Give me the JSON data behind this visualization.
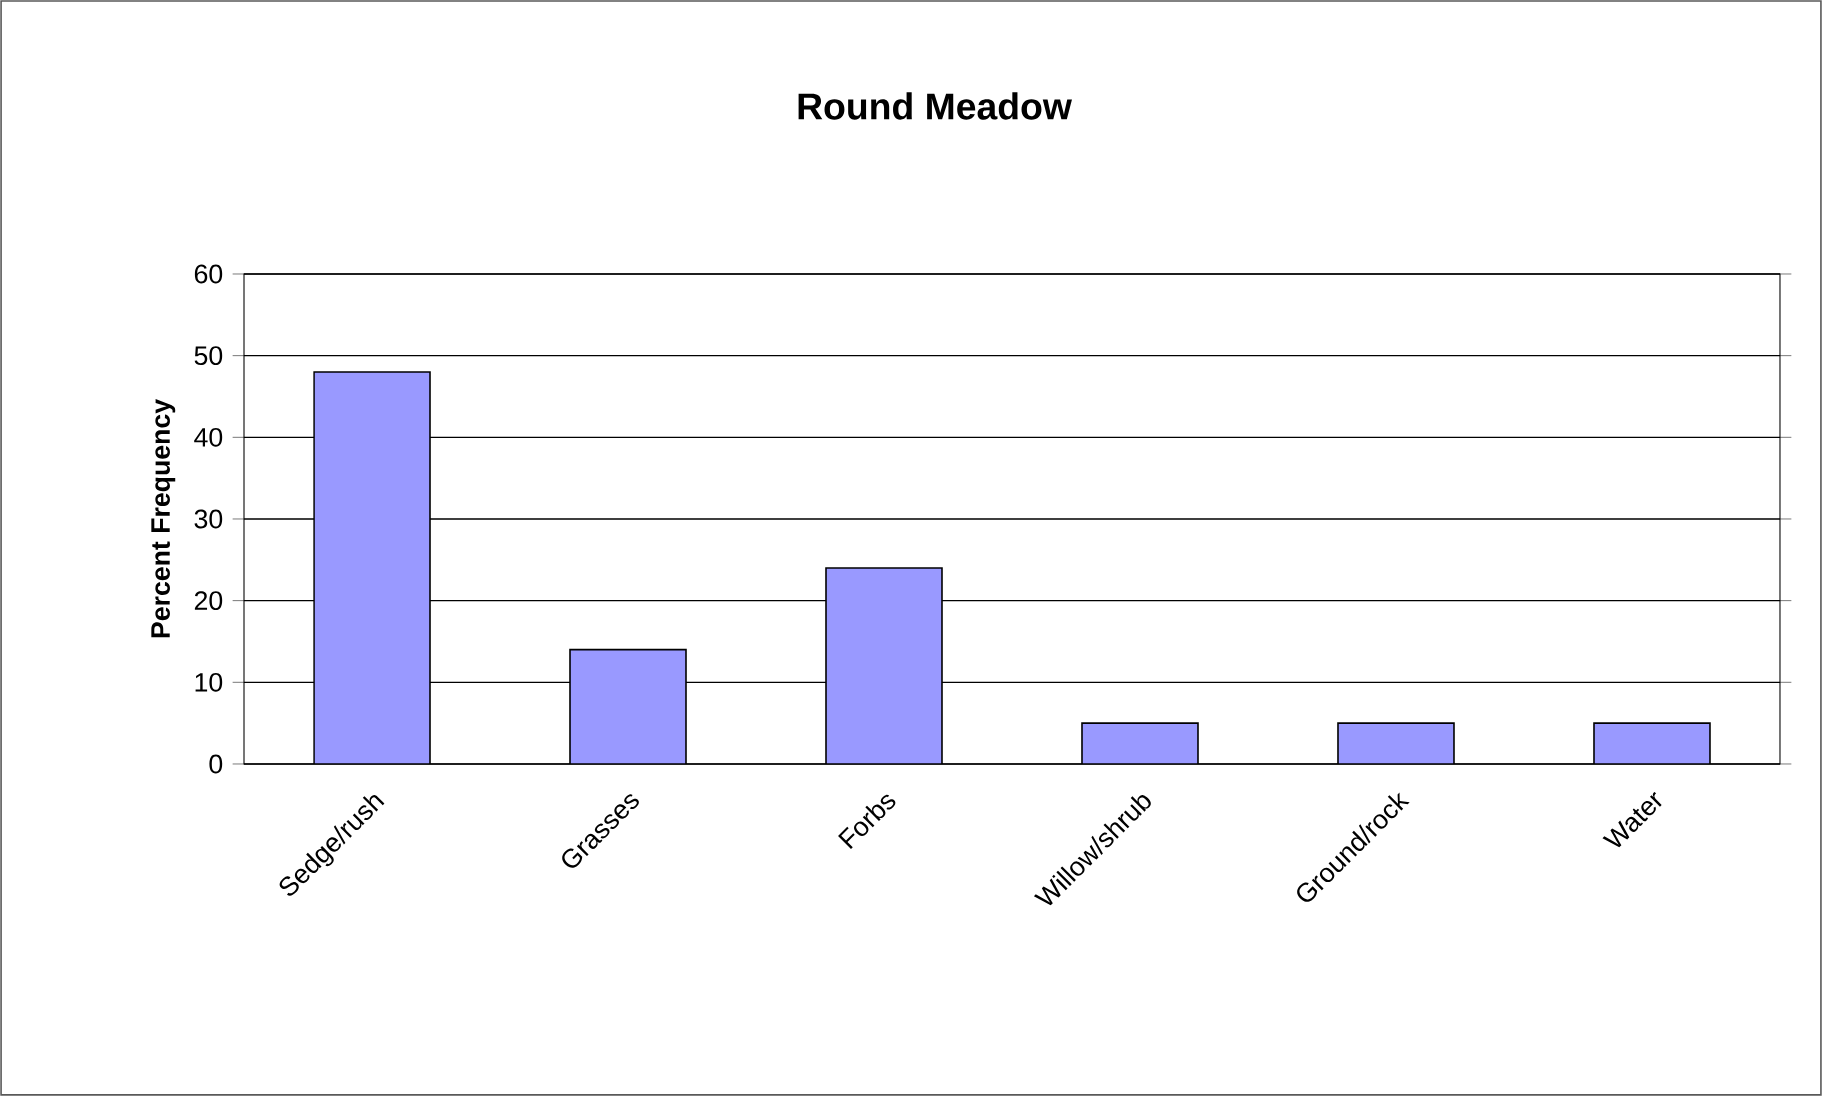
{
  "chart_data": {
    "type": "bar",
    "title": "Round Meadow",
    "ylabel": "Percent Frequency",
    "categories": [
      "Sedge/rush",
      "Grasses",
      "Forbs",
      "Willow/shrub",
      "Ground/rock",
      "Water"
    ],
    "values": [
      48,
      14,
      24,
      5,
      5,
      5
    ],
    "color": "#9999ff",
    "ylim": [
      0,
      60
    ],
    "yticks": [
      0,
      10,
      20,
      30,
      40,
      50,
      60
    ],
    "grid": "y"
  }
}
